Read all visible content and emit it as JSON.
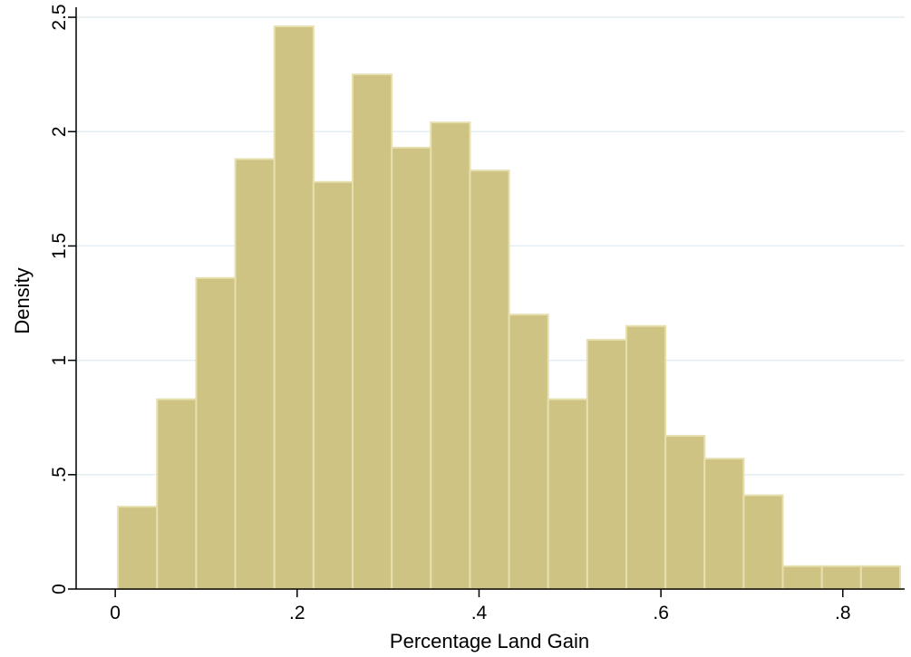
{
  "chart_data": {
    "type": "bar",
    "xlabel": "Percentage Land Gain",
    "ylabel": "Density",
    "xlim": [
      -0.043,
      0.868
    ],
    "ylim": [
      0,
      2.52
    ],
    "x_ticks": [
      {
        "value": 0,
        "label": "0"
      },
      {
        "value": 0.2,
        "label": ".2"
      },
      {
        "value": 0.4,
        "label": ".4"
      },
      {
        "value": 0.6,
        "label": ".6"
      },
      {
        "value": 0.8,
        "label": ".8"
      }
    ],
    "y_ticks": [
      {
        "value": 0,
        "label": "0"
      },
      {
        "value": 0.5,
        "label": ".5"
      },
      {
        "value": 1,
        "label": "1"
      },
      {
        "value": 1.5,
        "label": "1.5"
      },
      {
        "value": 2,
        "label": "2"
      },
      {
        "value": 2.5,
        "label": "2.5"
      }
    ],
    "grid": "horizontal",
    "bin_edges": [
      0.003,
      0.046,
      0.089,
      0.132,
      0.175,
      0.218,
      0.261,
      0.304,
      0.347,
      0.39,
      0.433,
      0.476,
      0.519,
      0.562,
      0.605,
      0.648,
      0.691,
      0.734,
      0.777,
      0.82,
      0.863
    ],
    "values": [
      0.36,
      0.83,
      1.36,
      1.88,
      2.46,
      1.78,
      2.25,
      1.93,
      2.04,
      1.83,
      1.2,
      0.83,
      1.09,
      1.15,
      0.67,
      0.57,
      0.41,
      0.1,
      0.1,
      0.1
    ],
    "colors": {
      "bar_fill": "#cfc383",
      "bar_stroke": "#e6dfaf",
      "grid": "#e3edf2",
      "axis": "#000000"
    }
  }
}
